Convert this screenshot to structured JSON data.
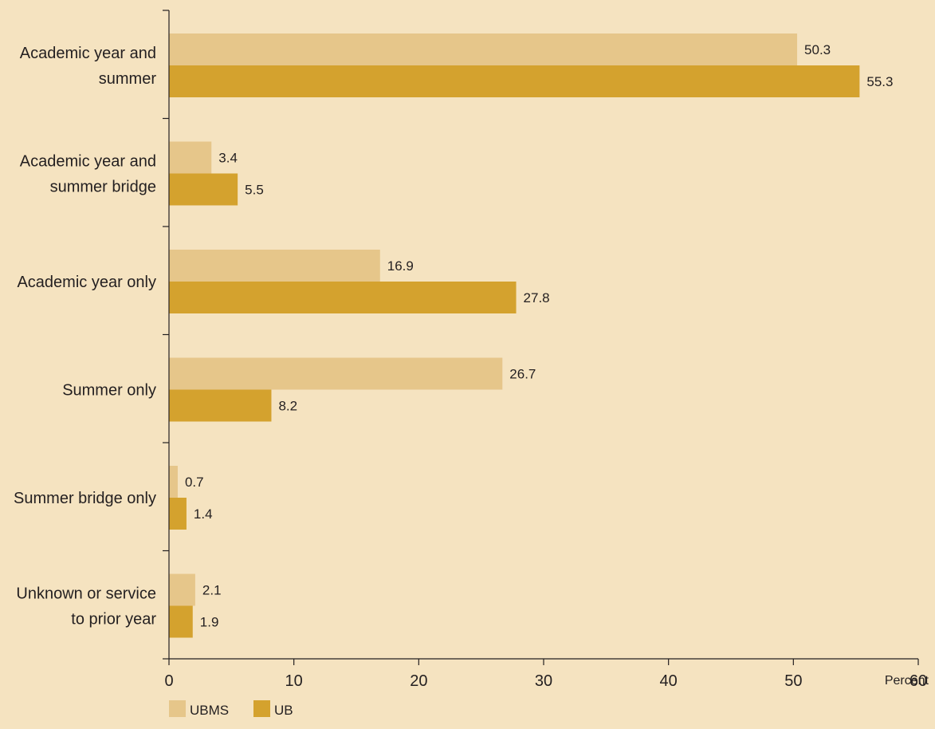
{
  "chart_data": {
    "type": "bar",
    "orientation": "horizontal",
    "categories": [
      [
        "Academic year and",
        "summer"
      ],
      [
        "Academic year and",
        "summer bridge"
      ],
      [
        "Academic year only"
      ],
      [
        "Summer only"
      ],
      [
        "Summer bridge only"
      ],
      [
        "Unknown or service",
        "to prior year"
      ]
    ],
    "series": [
      {
        "name": "UBMS",
        "color": "#e6c68a",
        "values": [
          50.3,
          3.4,
          16.9,
          26.7,
          0.7,
          2.1
        ]
      },
      {
        "name": "UB",
        "color": "#d4a22e",
        "values": [
          55.3,
          5.5,
          27.8,
          8.2,
          1.4,
          1.9
        ]
      }
    ],
    "xlim": [
      0,
      60
    ],
    "xticks": [
      0,
      10,
      20,
      30,
      40,
      50,
      60
    ],
    "xunit": "Percent",
    "grid": false,
    "legend_position": "bottom-left"
  }
}
